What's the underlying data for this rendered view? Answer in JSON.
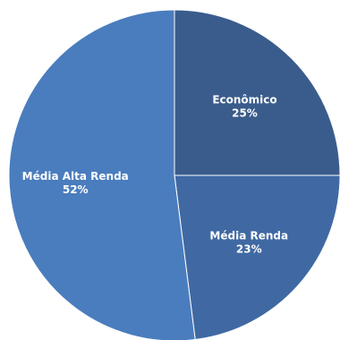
{
  "chart_data": {
    "type": "pie",
    "title": "",
    "slices": [
      {
        "label": "Econômico",
        "value": 25,
        "value_label": "25%",
        "color": "#3A5C8C"
      },
      {
        "label": "Média Renda",
        "value": 23,
        "value_label": "23%",
        "color": "#4069A3"
      },
      {
        "label": "Média Alta Renda",
        "value": 52,
        "value_label": "52%",
        "color": "#4A7DBE"
      }
    ],
    "start_angle_deg": 0,
    "direction": "clockwise",
    "legend": "none",
    "labels": "inside"
  }
}
